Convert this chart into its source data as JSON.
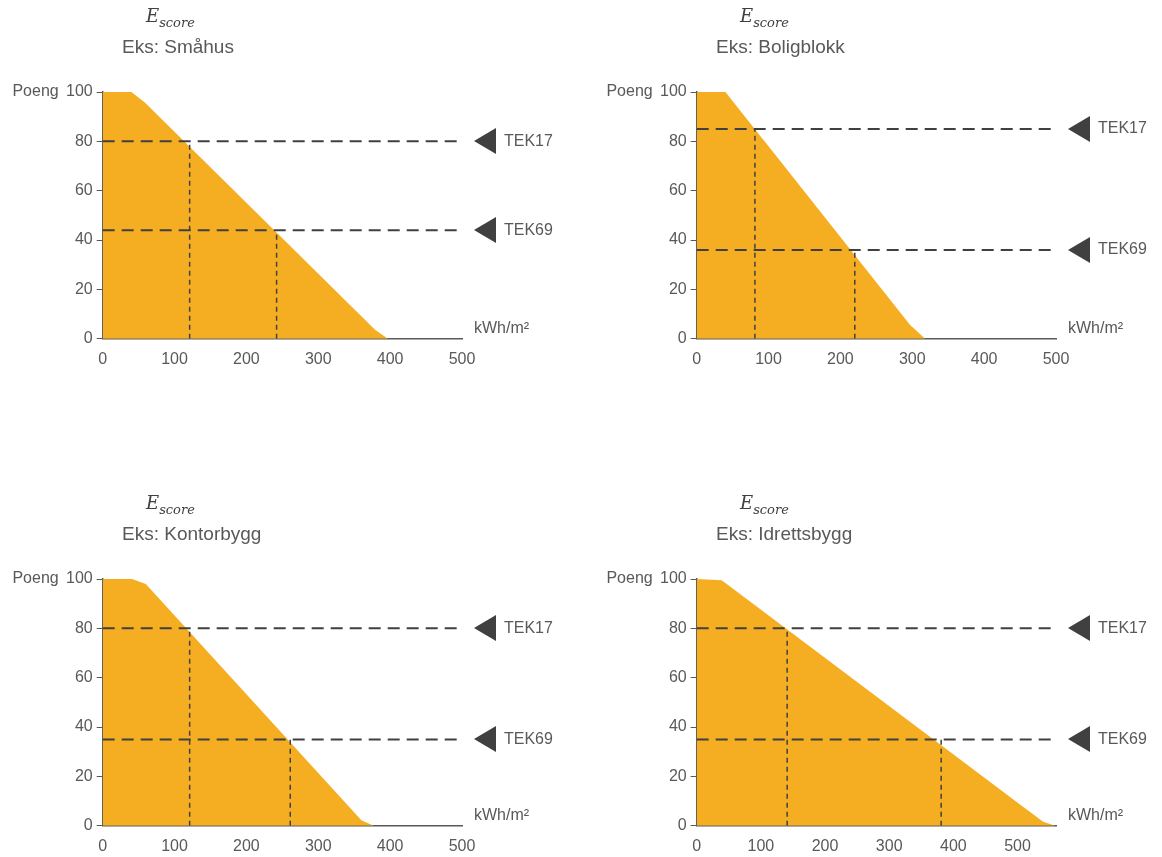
{
  "chart_data": [
    {
      "type": "area",
      "title": "E$_{score}$",
      "subtitle": "Eks: Småhus",
      "xlabel": "kWh/m²",
      "ylabel": "Poeng",
      "xlim": [
        0,
        500
      ],
      "xticks": [
        0,
        100,
        200,
        300,
        400,
        500
      ],
      "ylim": [
        0,
        100
      ],
      "yticks": [
        0,
        20,
        40,
        60,
        80,
        100
      ],
      "series": [
        {
          "color": "#f5ae22",
          "x": [
            0,
            40,
            59,
            379,
            397
          ],
          "values": [
            100,
            100,
            95.6,
            3.7,
            0
          ]
        },
        {
          "type": "line",
          "color": "#404040",
          "line_style": "dashed",
          "x": [
            121,
            121
          ],
          "values": [
            0,
            80
          ]
        },
        {
          "type": "line",
          "color": "#404040",
          "line_style": "dashed",
          "x": [
            242,
            242
          ],
          "values": [
            0,
            44
          ]
        }
      ],
      "ref_lines": [
        {
          "axis": "y",
          "value": 80,
          "label": "TEK17",
          "color": "#404040",
          "line_style": "dashed"
        },
        {
          "axis": "y",
          "value": 44,
          "label": "TEK69",
          "color": "#404040",
          "line_style": "dashed"
        }
      ]
    },
    {
      "type": "area",
      "title": "E$_{score}$",
      "subtitle": "Eks: Boligblokk",
      "xlabel": "kWh/m²",
      "ylabel": "Poeng",
      "xlim": [
        0,
        500
      ],
      "xticks": [
        0,
        100,
        200,
        300,
        400,
        500
      ],
      "ylim": [
        0,
        100
      ],
      "yticks": [
        0,
        20,
        40,
        60,
        80,
        100
      ],
      "series": [
        {
          "color": "#f5ae22",
          "x": [
            0,
            40,
            297,
            318
          ],
          "values": [
            100,
            100,
            5.6,
            0
          ]
        },
        {
          "type": "line",
          "color": "#404040",
          "line_style": "dashed",
          "x": [
            81,
            81
          ],
          "values": [
            0,
            85
          ]
        },
        {
          "type": "line",
          "color": "#404040",
          "line_style": "dashed",
          "x": [
            220,
            220
          ],
          "values": [
            0,
            36
          ]
        }
      ],
      "ref_lines": [
        {
          "axis": "y",
          "value": 85,
          "label": "TEK17",
          "color": "#404040",
          "line_style": "dashed"
        },
        {
          "axis": "y",
          "value": 36,
          "label": "TEK69",
          "color": "#404040",
          "line_style": "dashed"
        }
      ]
    },
    {
      "type": "area",
      "title": "E$_{score}$",
      "subtitle": "Eks: Kontorbygg",
      "xlabel": "kWh/m²",
      "ylabel": "Poeng",
      "xlim": [
        0,
        500
      ],
      "xticks": [
        0,
        100,
        200,
        300,
        400,
        500
      ],
      "ylim": [
        0,
        100
      ],
      "yticks": [
        0,
        20,
        40,
        60,
        80,
        100
      ],
      "series": [
        {
          "color": "#f5ae22",
          "x": [
            0,
            41,
            60,
            360,
            377
          ],
          "values": [
            100,
            100,
            98,
            2.2,
            0
          ]
        },
        {
          "type": "line",
          "color": "#404040",
          "line_style": "dashed",
          "x": [
            121,
            121
          ],
          "values": [
            0,
            80
          ]
        },
        {
          "type": "line",
          "color": "#404040",
          "line_style": "dashed",
          "x": [
            261,
            261
          ],
          "values": [
            0,
            35
          ]
        }
      ],
      "ref_lines": [
        {
          "axis": "y",
          "value": 80,
          "label": "TEK17",
          "color": "#404040",
          "line_style": "dashed"
        },
        {
          "axis": "y",
          "value": 35,
          "label": "TEK69",
          "color": "#404040",
          "line_style": "dashed"
        }
      ]
    },
    {
      "type": "area",
      "title": "E$_{score}$",
      "subtitle": "Eks: Idrettsbygg",
      "xlabel": "kWh/m²",
      "ylabel": "Poeng",
      "xlim": [
        0,
        560
      ],
      "xticks": [
        0,
        100,
        200,
        300,
        400,
        500
      ],
      "ylim": [
        0,
        100
      ],
      "yticks": [
        0,
        20,
        40,
        60,
        80,
        100
      ],
      "series": [
        {
          "color": "#f5ae22",
          "x": [
            0,
            39,
            540,
            559
          ],
          "values": [
            100,
            99.5,
            1.6,
            0
          ]
        },
        {
          "type": "line",
          "color": "#404040",
          "line_style": "dashed",
          "x": [
            141,
            141
          ],
          "values": [
            0,
            80
          ]
        },
        {
          "type": "line",
          "color": "#404040",
          "line_style": "dashed",
          "x": [
            381,
            381
          ],
          "values": [
            0,
            35
          ]
        }
      ],
      "ref_lines": [
        {
          "axis": "y",
          "value": 80,
          "label": "TEK17",
          "color": "#404040",
          "line_style": "dashed"
        },
        {
          "axis": "y",
          "value": 35,
          "label": "TEK69",
          "color": "#404040",
          "line_style": "dashed"
        }
      ]
    }
  ]
}
